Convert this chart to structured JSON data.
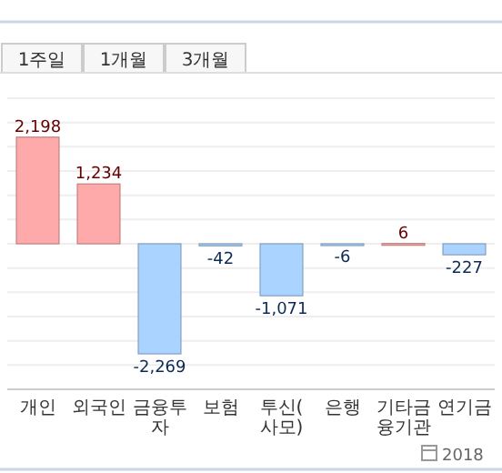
{
  "chart_data": {
    "type": "bar",
    "categories": [
      "개인",
      "외국인",
      "금융투자",
      "보험",
      "투신(사모)",
      "은행",
      "기타금융기관",
      "연기금"
    ],
    "values": [
      2198,
      1234,
      -2269,
      -42,
      -1071,
      -6,
      6,
      -227
    ],
    "colors": [
      "#ffaaaa",
      "#ffaaaa",
      "#aad4ff",
      "#aad4ff",
      "#aad4ff",
      "#aad4ff",
      "#ffaaaa",
      "#aad4ff"
    ],
    "value_labels": [
      "2,198",
      "1,234",
      "-2,269",
      "-42",
      "-1,071",
      "-6",
      "6",
      "-227"
    ],
    "ylim": [
      -3000,
      3000
    ],
    "yticks": [
      {
        "value": -3000,
        "label": null
      },
      {
        "value": -2500,
        "label": null
      },
      {
        "value": -2000,
        "label": null
      },
      {
        "value": -1500,
        "label": null
      },
      {
        "value": -1000,
        "label": null
      },
      {
        "value": -500,
        "label": null
      },
      {
        "value": 0,
        "label": null
      },
      {
        "value": 500,
        "label": null
      },
      {
        "value": 1000,
        "label": null
      },
      {
        "value": 1500,
        "label": null
      },
      {
        "value": 2000,
        "label": null
      },
      {
        "value": 2500,
        "label": null
      },
      {
        "value": 3000,
        "label": null
      }
    ],
    "tick_labels": "x",
    "grid": "y",
    "annotations": [
      "1주일",
      "1개월",
      "3개월",
      "2018"
    ]
  }
}
